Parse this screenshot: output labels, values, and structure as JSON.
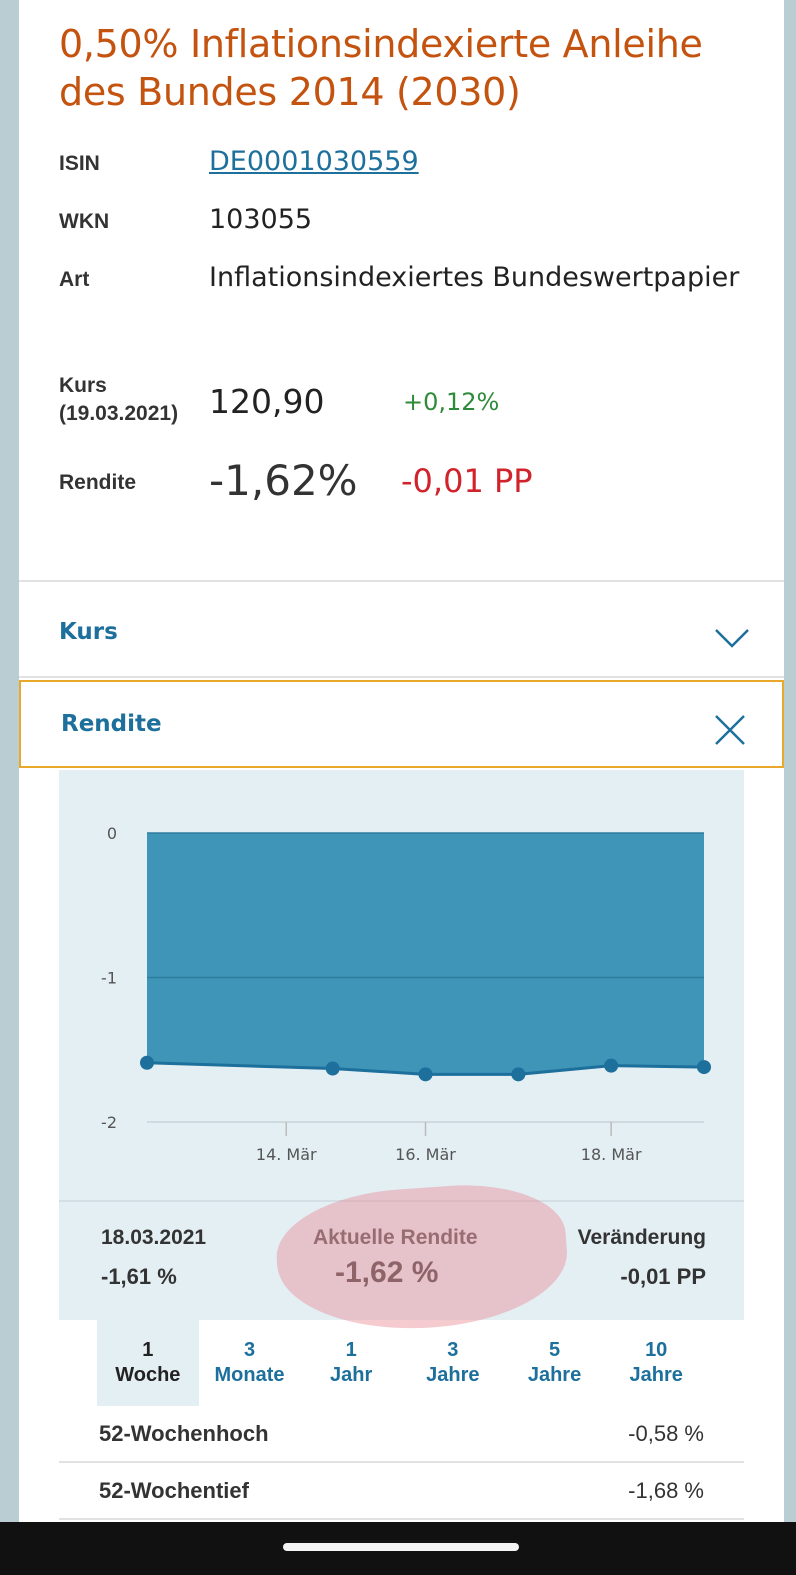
{
  "bond": {
    "title": "0,50% Inflationsindexierte Anleihe des Bundes 2014 (2030)",
    "isin_label": "ISIN",
    "isin": "DE0001030559",
    "wkn_label": "WKN",
    "wkn": "103055",
    "art_label": "Art",
    "art": "Inflationsindexiertes Bundeswertpapier",
    "kurs_label": "Kurs",
    "kurs_date": "(19.03.2021)",
    "kurs_value": "120,90",
    "kurs_change": "+0,12%",
    "rendite_label": "Rendite",
    "rendite_value": "-1,62%",
    "rendite_change": "-0,01 PP"
  },
  "accordion": {
    "kurs_label": "Kurs",
    "rendite_label": "Rendite"
  },
  "chart_data": {
    "type": "area",
    "x": [
      "11.03.2021",
      "12.03.2021",
      "15.03.2021",
      "16.03.2021",
      "17.03.2021",
      "18.03.2021",
      "19.03.2021"
    ],
    "x_ticks": [
      "14. Mär",
      "16. Mär",
      "18. Mär"
    ],
    "y_ticks": [
      "0",
      "-1",
      "-2"
    ],
    "ylim": [
      -2,
      0
    ],
    "series": [
      {
        "values": [
          -1.59,
          null,
          -1.63,
          -1.67,
          -1.67,
          -1.61,
          -1.62
        ]
      }
    ],
    "fill_color": "#3f95b8",
    "grid": true
  },
  "stats": {
    "date": "18.03.2021",
    "date_value": "-1,61 %",
    "current_label": "Aktuelle Rendite",
    "current_value": "-1,62 %",
    "change_label": "Veränderung",
    "change_value": "-0,01 PP"
  },
  "ranges": [
    {
      "n": "1",
      "unit": "Woche"
    },
    {
      "n": "3",
      "unit": "Monate"
    },
    {
      "n": "1",
      "unit": "Jahr"
    },
    {
      "n": "3",
      "unit": "Jahre"
    },
    {
      "n": "5",
      "unit": "Jahre"
    },
    {
      "n": "10",
      "unit": "Jahre"
    }
  ],
  "extremes": {
    "high_label": "52-Wochenhoch",
    "high_value": "-0,58 %",
    "low_label": "52-Wochentief",
    "low_value": "-1,68 %"
  },
  "colors": {
    "accent": "#c3530f",
    "link": "#1d6f9c",
    "positive": "#2e8b3a",
    "negative": "#d0232b",
    "focus": "#e8a92a"
  }
}
